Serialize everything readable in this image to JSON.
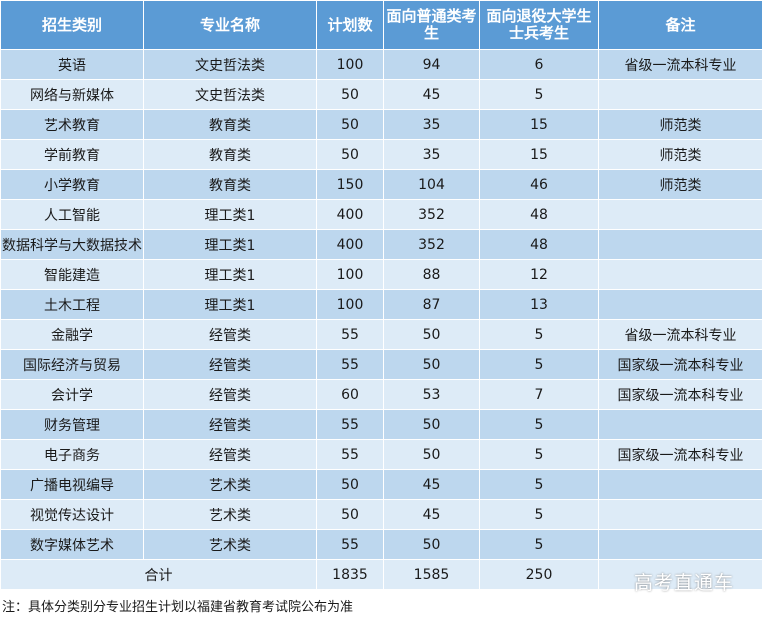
{
  "headers": [
    "招生类别",
    "专业名称",
    "计划数",
    "面向普通类考生",
    "面向退役大学生士兵考生",
    "备注"
  ],
  "rows": [
    [
      "英语",
      "文史哲法类",
      "100",
      "94",
      "6",
      "省级一流本科专业"
    ],
    [
      "网络与新媒体",
      "文史哲法类",
      "50",
      "45",
      "5",
      ""
    ],
    [
      "艺术教育",
      "教育类",
      "50",
      "35",
      "15",
      "师范类"
    ],
    [
      "学前教育",
      "教育类",
      "50",
      "35",
      "15",
      "师范类"
    ],
    [
      "小学教育",
      "教育类",
      "150",
      "104",
      "46",
      "师范类"
    ],
    [
      "人工智能",
      "理工类1",
      "400",
      "352",
      "48",
      ""
    ],
    [
      "数据科学与大数据技术",
      "理工类1",
      "400",
      "352",
      "48",
      ""
    ],
    [
      "智能建造",
      "理工类1",
      "100",
      "88",
      "12",
      ""
    ],
    [
      "土木工程",
      "理工类1",
      "100",
      "87",
      "13",
      ""
    ],
    [
      "金融学",
      "经管类",
      "55",
      "50",
      "5",
      "省级一流本科专业"
    ],
    [
      "国际经济与贸易",
      "经管类",
      "55",
      "50",
      "5",
      "国家级一流本科专业"
    ],
    [
      "会计学",
      "经管类",
      "60",
      "53",
      "7",
      "国家级一流本科专业"
    ],
    [
      "财务管理",
      "经管类",
      "55",
      "50",
      "5",
      ""
    ],
    [
      "电子商务",
      "经管类",
      "55",
      "50",
      "5",
      "国家级一流本科专业"
    ],
    [
      "广播电视编导",
      "艺术类",
      "50",
      "45",
      "5",
      ""
    ],
    [
      "视觉传达设计",
      "艺术类",
      "50",
      "45",
      "5",
      ""
    ],
    [
      "数字媒体艺术",
      "艺术类",
      "55",
      "50",
      "5",
      ""
    ]
  ],
  "total": {
    "label": "合计",
    "plan": "1835",
    "general": "1585",
    "veteran": "250",
    "remark": ""
  },
  "note": "注：具体分类别分专业招生计划以福建省教育考试院公布为准",
  "watermark": "高考直通车",
  "colors": {
    "header_bg": "#5b9bd5",
    "row_dark": "#bdd7ee",
    "row_light": "#ddebf7"
  }
}
